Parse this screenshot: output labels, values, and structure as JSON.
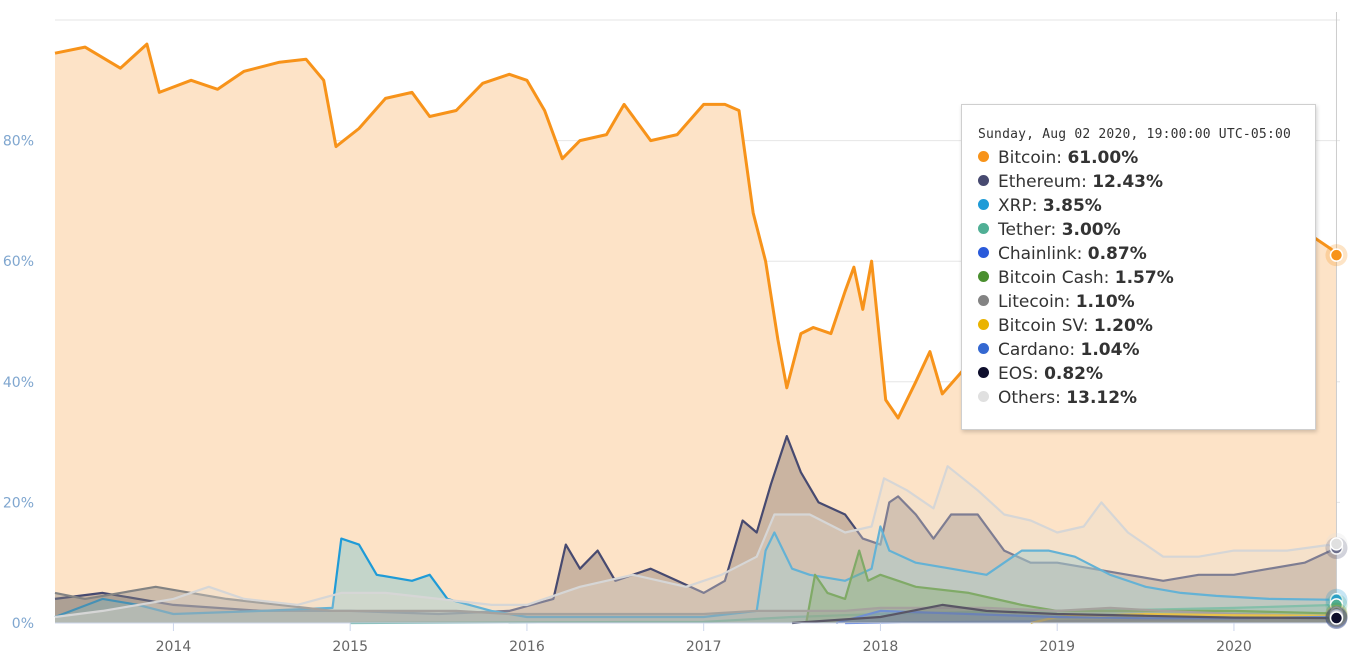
{
  "chart_data": {
    "type": "area",
    "title": "",
    "xlabel": "",
    "ylabel": "",
    "ylim": [
      0,
      100
    ],
    "y_ticks": [
      "0%",
      "20%",
      "40%",
      "60%",
      "80%"
    ],
    "x_ticks": [
      "2014",
      "2015",
      "2016",
      "2017",
      "2018",
      "2019",
      "2020"
    ],
    "grid": true,
    "series": [
      {
        "name": "Bitcoin",
        "color": "#f7931a",
        "fill": "#fde3c7",
        "points": [
          [
            2013.33,
            94.5
          ],
          [
            2013.5,
            95.5
          ],
          [
            2013.7,
            92
          ],
          [
            2013.85,
            96
          ],
          [
            2013.92,
            88
          ],
          [
            2014.1,
            90
          ],
          [
            2014.25,
            88.5
          ],
          [
            2014.4,
            91.5
          ],
          [
            2014.6,
            93
          ],
          [
            2014.75,
            93.5
          ],
          [
            2014.85,
            90
          ],
          [
            2014.92,
            79
          ],
          [
            2015.05,
            82
          ],
          [
            2015.2,
            87
          ],
          [
            2015.35,
            88
          ],
          [
            2015.45,
            84
          ],
          [
            2015.6,
            85
          ],
          [
            2015.75,
            89.5
          ],
          [
            2015.9,
            91
          ],
          [
            2016.0,
            90
          ],
          [
            2016.1,
            85
          ],
          [
            2016.2,
            77
          ],
          [
            2016.3,
            80
          ],
          [
            2016.45,
            81
          ],
          [
            2016.55,
            86
          ],
          [
            2016.7,
            80
          ],
          [
            2016.85,
            81
          ],
          [
            2017.0,
            86
          ],
          [
            2017.12,
            86
          ],
          [
            2017.2,
            85
          ],
          [
            2017.28,
            68
          ],
          [
            2017.35,
            60
          ],
          [
            2017.42,
            47
          ],
          [
            2017.47,
            39
          ],
          [
            2017.55,
            48
          ],
          [
            2017.62,
            49
          ],
          [
            2017.72,
            48
          ],
          [
            2017.8,
            55
          ],
          [
            2017.85,
            59
          ],
          [
            2017.9,
            52
          ],
          [
            2017.95,
            60
          ],
          [
            2018.03,
            37
          ],
          [
            2018.1,
            34
          ],
          [
            2018.2,
            40
          ],
          [
            2018.28,
            45
          ],
          [
            2018.35,
            38
          ],
          [
            2018.5,
            43
          ],
          [
            2018.7,
            50
          ],
          [
            2018.9,
            53
          ],
          [
            2019.1,
            55
          ],
          [
            2019.3,
            58
          ],
          [
            2019.45,
            62
          ],
          [
            2019.55,
            67
          ],
          [
            2019.7,
            69
          ],
          [
            2019.85,
            68
          ],
          [
            2019.95,
            67
          ],
          [
            2020.15,
            64
          ],
          [
            2020.3,
            65
          ],
          [
            2020.45,
            64
          ],
          [
            2020.55,
            62
          ],
          [
            2020.58,
            61
          ]
        ]
      },
      {
        "name": "Ethereum",
        "color": "#474a70",
        "fill": "rgba(160,142,130,0.55)",
        "points": [
          [
            2013.33,
            4
          ],
          [
            2013.6,
            5
          ],
          [
            2014.0,
            3
          ],
          [
            2014.5,
            2
          ],
          [
            2015.0,
            2
          ],
          [
            2015.5,
            1.5
          ],
          [
            2015.9,
            2
          ],
          [
            2016.15,
            4
          ],
          [
            2016.22,
            13
          ],
          [
            2016.3,
            9
          ],
          [
            2016.4,
            12
          ],
          [
            2016.5,
            7
          ],
          [
            2016.7,
            9
          ],
          [
            2016.85,
            7
          ],
          [
            2017.0,
            5
          ],
          [
            2017.12,
            7
          ],
          [
            2017.22,
            17
          ],
          [
            2017.3,
            15
          ],
          [
            2017.38,
            23
          ],
          [
            2017.47,
            31
          ],
          [
            2017.55,
            25
          ],
          [
            2017.65,
            20
          ],
          [
            2017.8,
            18
          ],
          [
            2017.9,
            14
          ],
          [
            2018.0,
            13
          ],
          [
            2018.05,
            20
          ],
          [
            2018.1,
            21
          ],
          [
            2018.2,
            18
          ],
          [
            2018.3,
            14
          ],
          [
            2018.4,
            18
          ],
          [
            2018.55,
            18
          ],
          [
            2018.7,
            12
          ],
          [
            2018.85,
            10
          ],
          [
            2019.0,
            10
          ],
          [
            2019.2,
            9
          ],
          [
            2019.4,
            8
          ],
          [
            2019.6,
            7
          ],
          [
            2019.8,
            8
          ],
          [
            2020.0,
            8
          ],
          [
            2020.2,
            9
          ],
          [
            2020.4,
            10
          ],
          [
            2020.58,
            12.43
          ]
        ]
      },
      {
        "name": "XRP",
        "color": "#1f9bd7",
        "fill": "rgba(140,200,205,0.5)",
        "points": [
          [
            2013.33,
            1
          ],
          [
            2013.6,
            4
          ],
          [
            2013.8,
            3
          ],
          [
            2014.0,
            1.5
          ],
          [
            2014.5,
            2
          ],
          [
            2014.9,
            2.5
          ],
          [
            2014.95,
            14
          ],
          [
            2015.05,
            13
          ],
          [
            2015.15,
            8
          ],
          [
            2015.35,
            7
          ],
          [
            2015.45,
            8
          ],
          [
            2015.55,
            4
          ],
          [
            2015.8,
            2
          ],
          [
            2016.0,
            1
          ],
          [
            2016.5,
            1
          ],
          [
            2017.0,
            1
          ],
          [
            2017.3,
            2
          ],
          [
            2017.35,
            12
          ],
          [
            2017.4,
            15
          ],
          [
            2017.5,
            9
          ],
          [
            2017.6,
            8
          ],
          [
            2017.8,
            7
          ],
          [
            2017.95,
            9
          ],
          [
            2018.0,
            16
          ],
          [
            2018.05,
            12
          ],
          [
            2018.2,
            10
          ],
          [
            2018.4,
            9
          ],
          [
            2018.6,
            8
          ],
          [
            2018.8,
            12
          ],
          [
            2018.95,
            12
          ],
          [
            2019.1,
            11
          ],
          [
            2019.3,
            8
          ],
          [
            2019.5,
            6
          ],
          [
            2019.7,
            5
          ],
          [
            2019.9,
            4.5
          ],
          [
            2020.2,
            4
          ],
          [
            2020.58,
            3.85
          ]
        ]
      },
      {
        "name": "Tether",
        "color": "#50af95",
        "fill": "rgba(80,175,149,0.3)",
        "points": [
          [
            2015.0,
            0
          ],
          [
            2017.0,
            0.2
          ],
          [
            2017.5,
            1
          ],
          [
            2018.0,
            1.5
          ],
          [
            2018.5,
            1.8
          ],
          [
            2019.0,
            2
          ],
          [
            2019.5,
            2.2
          ],
          [
            2020.0,
            2.5
          ],
          [
            2020.58,
            3.0
          ]
        ]
      },
      {
        "name": "Chainlink",
        "color": "#2a5ada",
        "fill": "rgba(42,90,218,0.3)",
        "points": [
          [
            2017.8,
            0
          ],
          [
            2018.5,
            0.2
          ],
          [
            2019.0,
            0.3
          ],
          [
            2019.5,
            0.5
          ],
          [
            2020.0,
            0.6
          ],
          [
            2020.58,
            0.87
          ]
        ]
      },
      {
        "name": "Bitcoin Cash",
        "color": "#4a8f2f",
        "fill": "rgba(74,143,47,0.35)",
        "points": [
          [
            2017.58,
            0
          ],
          [
            2017.63,
            8
          ],
          [
            2017.7,
            5
          ],
          [
            2017.8,
            4
          ],
          [
            2017.88,
            12
          ],
          [
            2017.93,
            7
          ],
          [
            2018.0,
            8
          ],
          [
            2018.2,
            6
          ],
          [
            2018.5,
            5
          ],
          [
            2018.8,
            3
          ],
          [
            2019.0,
            2
          ],
          [
            2019.5,
            2
          ],
          [
            2020.0,
            2
          ],
          [
            2020.58,
            1.57
          ]
        ]
      },
      {
        "name": "Litecoin",
        "color": "#838383",
        "fill": "rgba(131,131,131,0.4)",
        "points": [
          [
            2013.33,
            5
          ],
          [
            2013.5,
            4
          ],
          [
            2013.7,
            5
          ],
          [
            2013.9,
            6
          ],
          [
            2014.1,
            5
          ],
          [
            2014.3,
            4
          ],
          [
            2014.6,
            3
          ],
          [
            2014.9,
            2
          ],
          [
            2015.2,
            2
          ],
          [
            2015.6,
            2
          ],
          [
            2015.9,
            1.5
          ],
          [
            2016.3,
            1.5
          ],
          [
            2016.7,
            1.5
          ],
          [
            2017.0,
            1.5
          ],
          [
            2017.3,
            2
          ],
          [
            2017.5,
            2
          ],
          [
            2017.8,
            2
          ],
          [
            2018.0,
            2.5
          ],
          [
            2018.3,
            2.5
          ],
          [
            2018.6,
            2.5
          ],
          [
            2019.0,
            2
          ],
          [
            2019.3,
            2.5
          ],
          [
            2019.6,
            2
          ],
          [
            2020.0,
            1.5
          ],
          [
            2020.58,
            1.1
          ]
        ]
      },
      {
        "name": "Bitcoin SV",
        "color": "#eab300",
        "fill": "rgba(234,179,0,0.35)",
        "points": [
          [
            2018.85,
            0
          ],
          [
            2019.0,
            1
          ],
          [
            2019.5,
            1.5
          ],
          [
            2020.0,
            1.3
          ],
          [
            2020.58,
            1.2
          ]
        ]
      },
      {
        "name": "Cardano",
        "color": "#3468d1",
        "fill": "rgba(52,104,209,0.3)",
        "points": [
          [
            2017.75,
            0
          ],
          [
            2018.0,
            2
          ],
          [
            2018.5,
            1.5
          ],
          [
            2019.0,
            1
          ],
          [
            2019.5,
            0.8
          ],
          [
            2020.0,
            0.8
          ],
          [
            2020.58,
            1.04
          ]
        ]
      },
      {
        "name": "EOS",
        "color": "#0e0e2c",
        "fill": "rgba(14,14,44,0.25)",
        "points": [
          [
            2017.5,
            0
          ],
          [
            2018.0,
            1
          ],
          [
            2018.35,
            3
          ],
          [
            2018.6,
            2
          ],
          [
            2019.0,
            1.5
          ],
          [
            2019.5,
            1.2
          ],
          [
            2020.0,
            0.9
          ],
          [
            2020.58,
            0.82
          ]
        ]
      },
      {
        "name": "Others",
        "color": "#e0e0e0",
        "line": "#d6d6d6",
        "fill": "rgba(230,220,210,0.35)",
        "points": [
          [
            2013.33,
            1
          ],
          [
            2013.6,
            2
          ],
          [
            2013.8,
            3
          ],
          [
            2014.0,
            4
          ],
          [
            2014.2,
            6
          ],
          [
            2014.4,
            4
          ],
          [
            2014.7,
            3
          ],
          [
            2014.95,
            5
          ],
          [
            2015.2,
            5
          ],
          [
            2015.5,
            4
          ],
          [
            2015.8,
            3
          ],
          [
            2016.0,
            3
          ],
          [
            2016.3,
            6
          ],
          [
            2016.6,
            8
          ],
          [
            2016.9,
            6
          ],
          [
            2017.1,
            8
          ],
          [
            2017.3,
            11
          ],
          [
            2017.4,
            18
          ],
          [
            2017.6,
            18
          ],
          [
            2017.8,
            15
          ],
          [
            2017.95,
            16
          ],
          [
            2018.02,
            24
          ],
          [
            2018.15,
            22
          ],
          [
            2018.3,
            19
          ],
          [
            2018.38,
            26
          ],
          [
            2018.55,
            22
          ],
          [
            2018.7,
            18
          ],
          [
            2018.85,
            17
          ],
          [
            2019.0,
            15
          ],
          [
            2019.15,
            16
          ],
          [
            2019.25,
            20
          ],
          [
            2019.4,
            15
          ],
          [
            2019.6,
            11
          ],
          [
            2019.8,
            11
          ],
          [
            2020.0,
            12
          ],
          [
            2020.3,
            12
          ],
          [
            2020.58,
            13.12
          ]
        ]
      }
    ]
  },
  "tooltip": {
    "time": "Sunday, Aug 02 2020, 19:00:00 UTC-05:00",
    "rows": [
      {
        "name": "Bitcoin",
        "value": "61.00%",
        "color": "#f7931a"
      },
      {
        "name": "Ethereum",
        "value": "12.43%",
        "color": "#474a70"
      },
      {
        "name": "XRP",
        "value": "3.85%",
        "color": "#1f9bd7"
      },
      {
        "name": "Tether",
        "value": "3.00%",
        "color": "#50af95"
      },
      {
        "name": "Chainlink",
        "value": "0.87%",
        "color": "#2a5ada"
      },
      {
        "name": "Bitcoin Cash",
        "value": "1.57%",
        "color": "#4a8f2f"
      },
      {
        "name": "Litecoin",
        "value": "1.10%",
        "color": "#838383"
      },
      {
        "name": "Bitcoin SV",
        "value": "1.20%",
        "color": "#eab300"
      },
      {
        "name": "Cardano",
        "value": "1.04%",
        "color": "#3468d1"
      },
      {
        "name": "EOS",
        "value": "0.82%",
        "color": "#0e0e2c"
      },
      {
        "name": "Others",
        "value": "13.12%",
        "color": "#e0e0e0"
      }
    ]
  }
}
